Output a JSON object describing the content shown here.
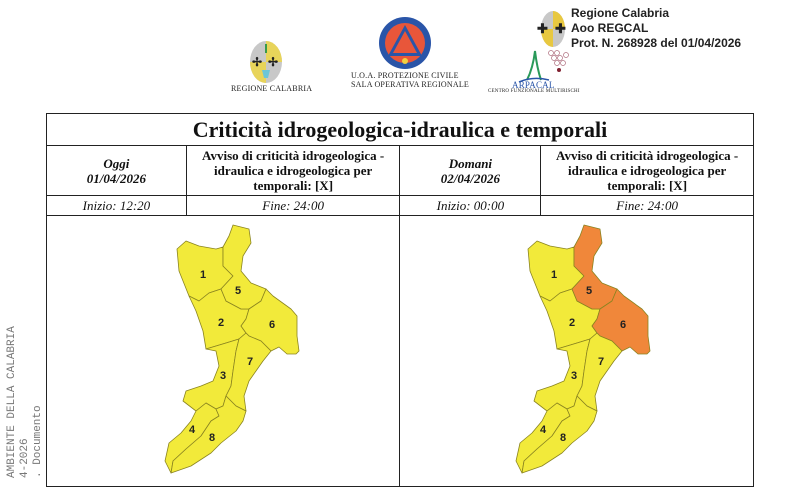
{
  "side_stamp": {
    "line1": "AMBIENTE DELLA CALABRIA",
    "line2": "4-2026",
    "line3": ". Documento"
  },
  "logos": {
    "regione": "REGIONE CALABRIA",
    "protezione_line1": "U.O.A. PROTEZIONE CIVILE",
    "protezione_line2": "SALA OPERATIVA REGIONALE",
    "arpacal": "ARPACAL",
    "arpacal_sub": "CENTRO FUNZIONALE MULTIRISCHI"
  },
  "protocol": {
    "line1": "Regione Calabria",
    "line2": "Aoo REGCAL",
    "line3": "Prot. N. 268928 del 01/04/2026"
  },
  "table": {
    "title": "Criticità idrogeologica-idraulica e temporali",
    "today": {
      "label": "Oggi",
      "date": "01/04/2026",
      "notice": "Avviso di criticità idrogeologica - idraulica e idrogeologica per temporali: [X]",
      "start": "Inizio: 12:20",
      "end": "Fine: 24:00"
    },
    "tomorrow": {
      "label": "Domani",
      "date": "02/04/2026",
      "notice": "Avviso di criticità idrogeologica - idraulica e idrogeologica per temporali: [X]",
      "start": "Inizio: 00:00",
      "end": "Fine: 24:00"
    }
  },
  "colors": {
    "yellow": "#f2ea3a",
    "orange": "#f0873a",
    "border": "#8a8420"
  },
  "maps": {
    "zones": [
      "1",
      "2",
      "3",
      "4",
      "5",
      "6",
      "7",
      "8"
    ],
    "today_levels": {
      "1": "yellow",
      "2": "yellow",
      "3": "yellow",
      "4": "yellow",
      "5": "yellow",
      "6": "yellow",
      "7": "yellow",
      "8": "yellow"
    },
    "tomorrow_levels": {
      "1": "yellow",
      "2": "yellow",
      "3": "yellow",
      "4": "yellow",
      "5": "orange",
      "6": "orange",
      "7": "yellow",
      "8": "yellow"
    }
  }
}
